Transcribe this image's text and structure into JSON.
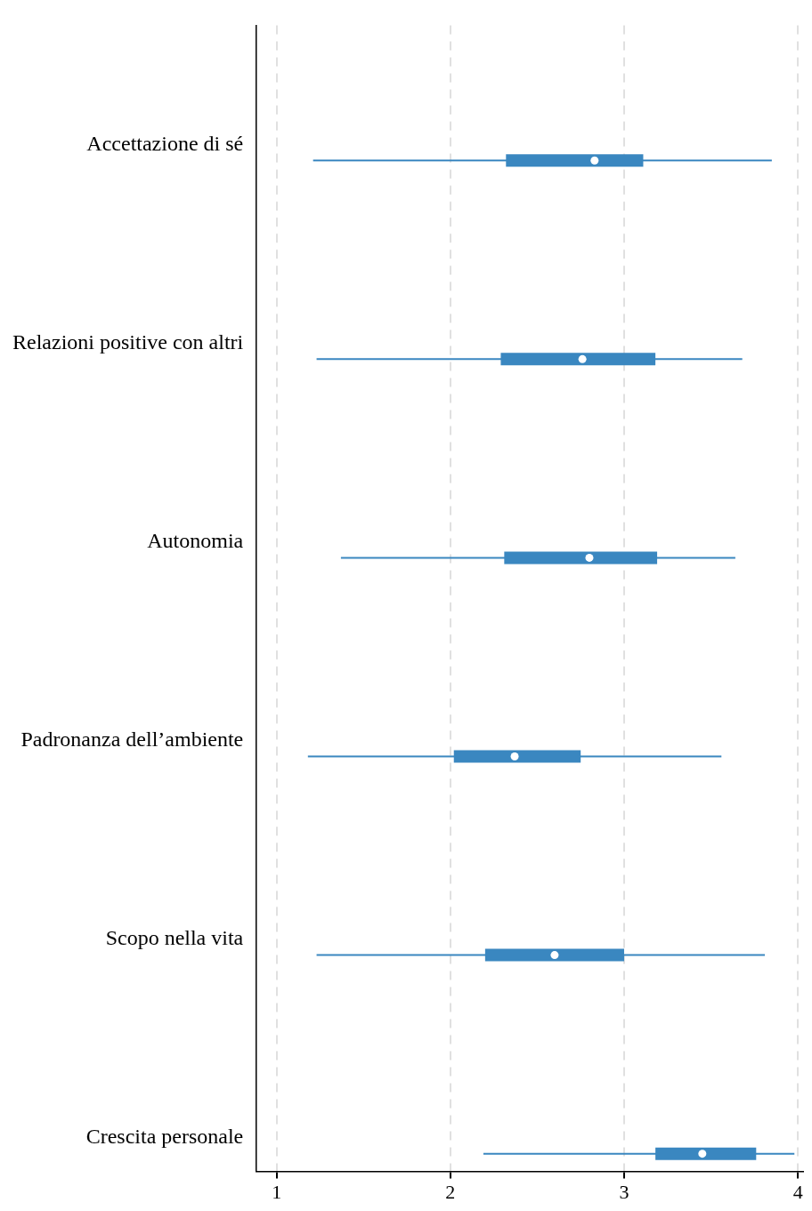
{
  "chart_data": {
    "type": "box",
    "orientation": "horizontal",
    "categories": [
      "Accettazione di sé",
      "Relazioni positive con altri",
      "Autonomia",
      "Padronanza dell’ambiente",
      "Scopo nella vita",
      "Crescita personale"
    ],
    "color": "#3a87c0",
    "boxes": [
      {
        "low": 1.21,
        "q1": 2.32,
        "median": 2.83,
        "q3": 3.11,
        "high": 3.85
      },
      {
        "low": 1.23,
        "q1": 2.29,
        "median": 2.76,
        "q3": 3.18,
        "high": 3.68
      },
      {
        "low": 1.37,
        "q1": 2.31,
        "median": 2.8,
        "q3": 3.19,
        "high": 3.64
      },
      {
        "low": 1.18,
        "q1": 2.02,
        "median": 2.37,
        "q3": 2.75,
        "high": 3.56
      },
      {
        "low": 1.23,
        "q1": 2.2,
        "median": 2.6,
        "q3": 3.0,
        "high": 3.81
      },
      {
        "low": 2.19,
        "q1": 3.18,
        "median": 3.45,
        "q3": 3.76,
        "high": 3.98
      }
    ],
    "xlim": [
      0.88,
      4.03
    ],
    "xticks": [
      1,
      2,
      3,
      4
    ],
    "grid": "x",
    "legend": false
  }
}
